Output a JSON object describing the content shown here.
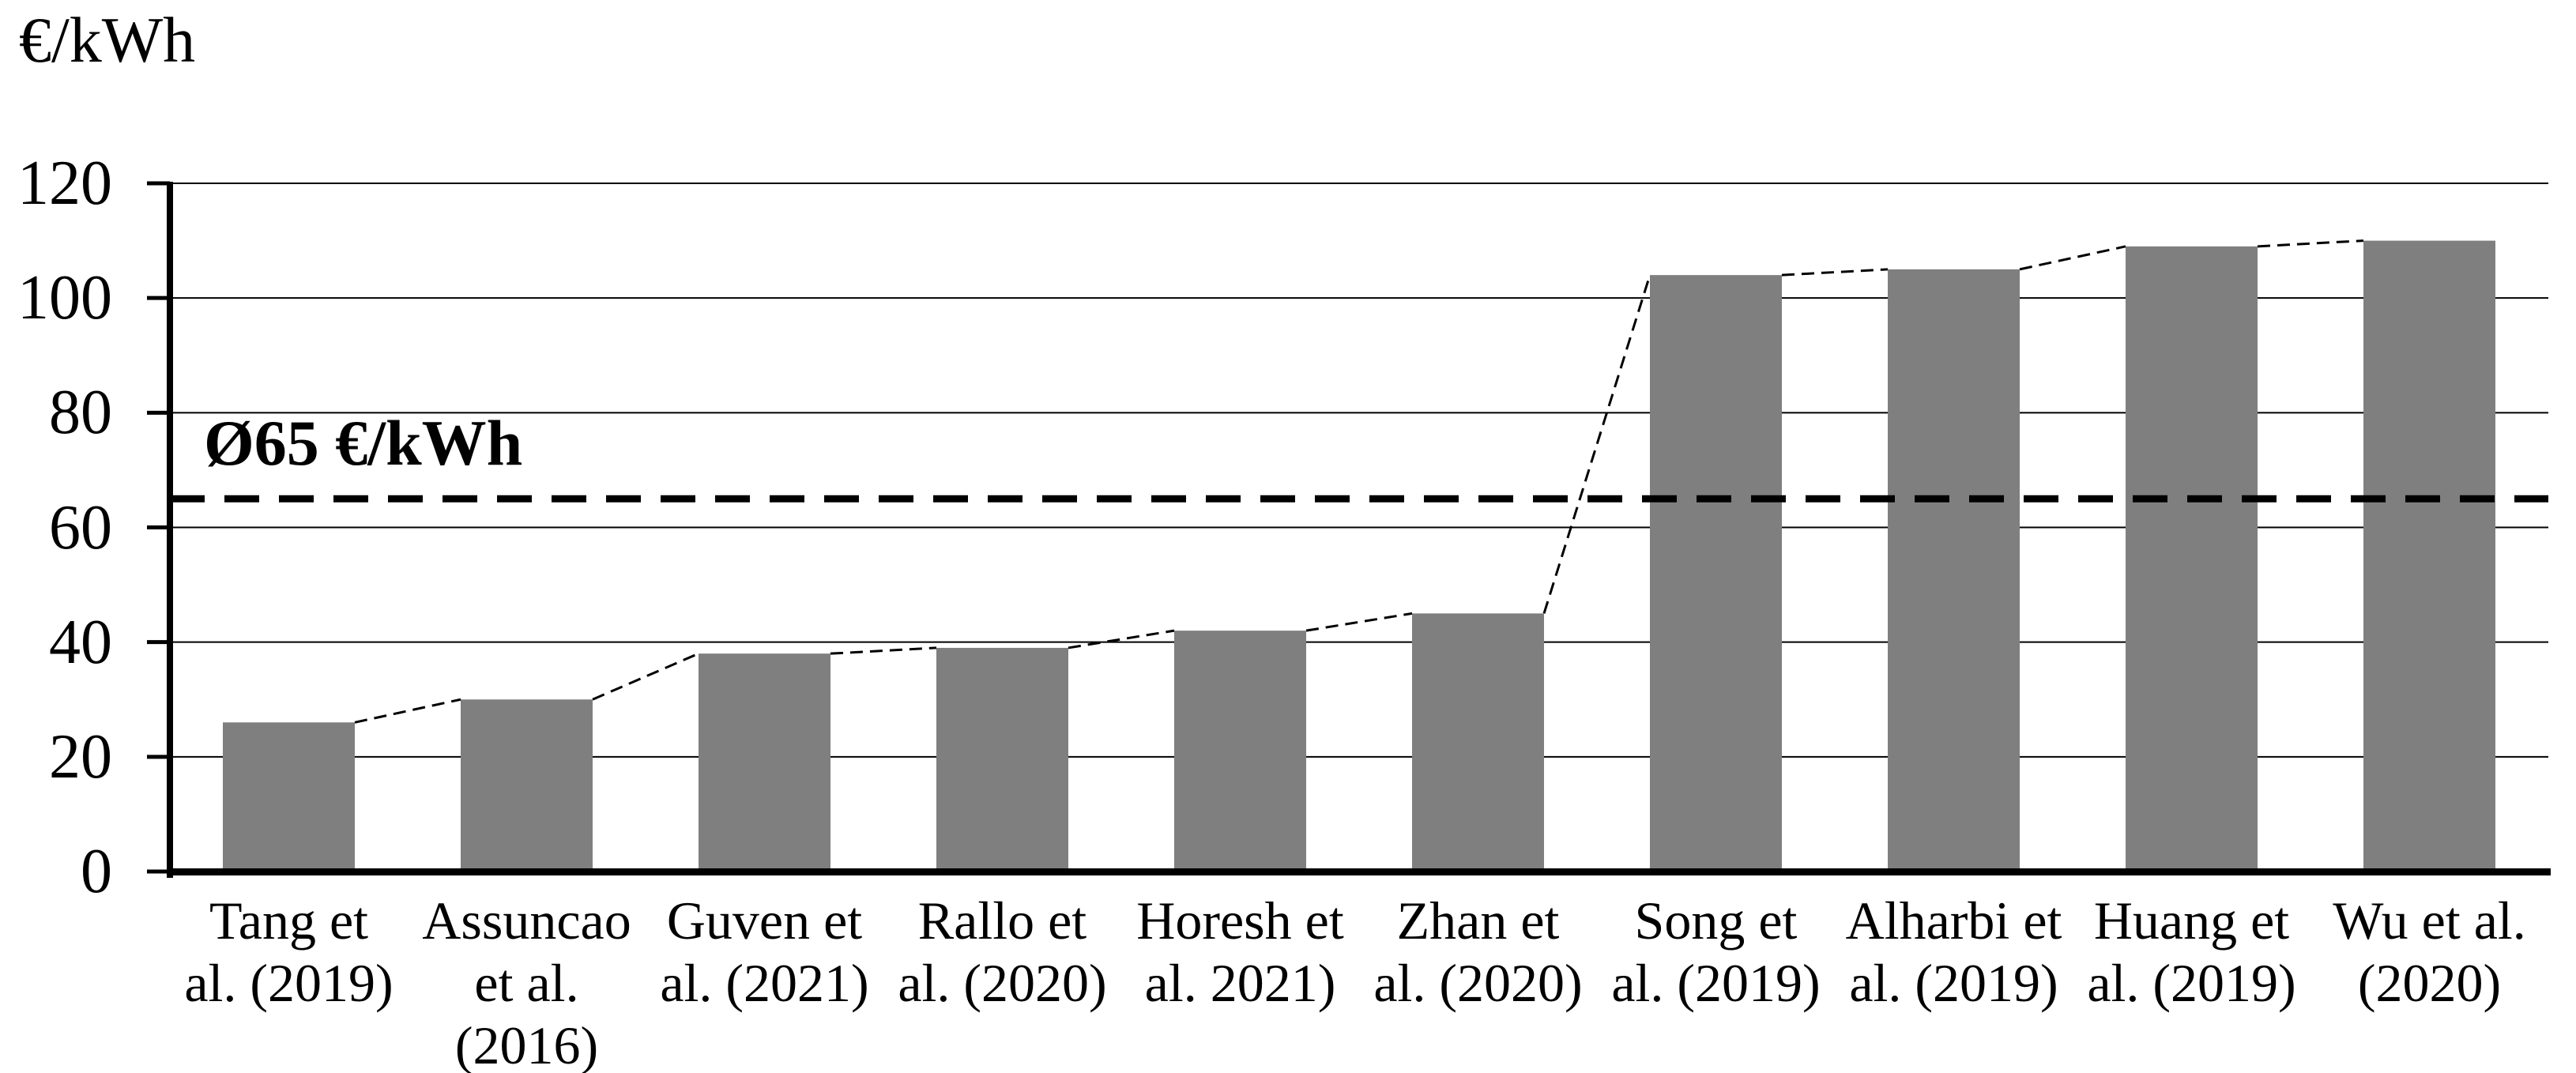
{
  "chart_data": {
    "type": "bar",
    "unit_label": "€/kWh",
    "ylabel": "€/kWh",
    "xlabel": "",
    "categories": [
      "Tang et al. (2019)",
      "Assuncao et al. (2016)",
      "Guven et al. (2021)",
      "Rallo et al. (2020)",
      "Horesh et al. 2021)",
      "Zhan et al. (2020)",
      "Song et al. (2019)",
      "Alharbi et al. (2019)",
      "Huang et al. (2019)",
      "Wu et al. (2020)"
    ],
    "category_label_lines": [
      [
        "Tang et",
        "al. (2019)"
      ],
      [
        "Assuncao",
        "et al.",
        "(2016)"
      ],
      [
        "Guven et",
        "al. (2021)"
      ],
      [
        "Rallo et",
        "al. (2020)"
      ],
      [
        "Horesh et",
        "al. 2021)"
      ],
      [
        "Zhan et",
        "al. (2020)"
      ],
      [
        "Song et",
        "al. (2019)"
      ],
      [
        "Alharbi et",
        "al. (2019)"
      ],
      [
        "Huang et",
        "al. (2019)"
      ],
      [
        "Wu et al.",
        "(2020)"
      ]
    ],
    "values": [
      26,
      30,
      38,
      39,
      42,
      45,
      104,
      105,
      109,
      110
    ],
    "mean_line": {
      "value": 65,
      "label": "Ø65 €/kWh"
    },
    "y_axis": {
      "min": 0,
      "max": 120,
      "step": 20,
      "ticks": [
        0,
        20,
        40,
        60,
        80,
        100,
        120
      ]
    },
    "grid": "horizontal",
    "legend": "none",
    "connector_line": "dashed line joining successive bar top corners",
    "colors": {
      "bar_fill": "#7f7f7f",
      "axis": "#000000",
      "gridline": "#000000",
      "mean_line": "#000000",
      "connector": "#000000",
      "text": "#000000",
      "background": "#ffffff"
    }
  }
}
